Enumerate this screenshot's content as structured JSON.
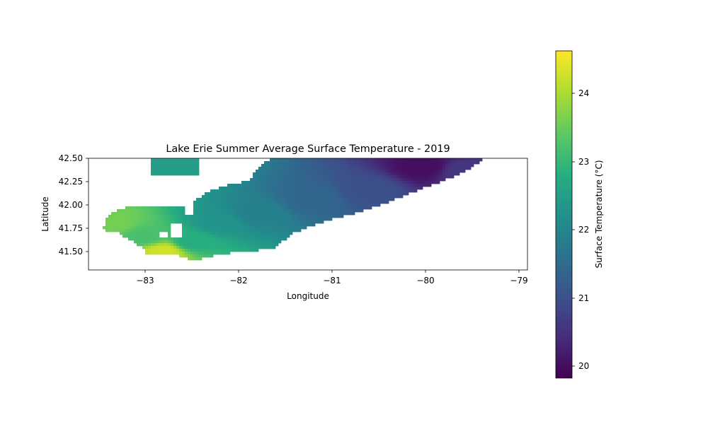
{
  "chart_data": {
    "type": "heatmap",
    "title": "Lake Erie Summer Average Surface Temperature - 2019",
    "xlabel": "Longitude",
    "ylabel": "Latitude",
    "xlim": [
      -83.6,
      -78.9
    ],
    "ylim": [
      41.3,
      42.5
    ],
    "xticks": [
      -83,
      -82,
      -81,
      -80,
      -79
    ],
    "xtick_labels": [
      "−83",
      "−82",
      "−81",
      "−80",
      "−79"
    ],
    "yticks": [
      41.5,
      41.75,
      42.0,
      42.25,
      42.5
    ],
    "ytick_labels": [
      "41.50",
      "41.75",
      "42.00",
      "42.25",
      "42.50"
    ],
    "colormap": "viridis",
    "colorbar": {
      "label": "Surface Temperature (°C)",
      "range": [
        19.83,
        24.63
      ],
      "ticks": [
        20,
        21,
        22,
        23,
        24
      ],
      "tick_labels": [
        "20",
        "21",
        "22",
        "23",
        "24"
      ]
    },
    "field_description_points": [
      {
        "lon": -83.35,
        "lat": 41.8,
        "temp": 23.6
      },
      {
        "lon": -83.0,
        "lat": 41.65,
        "temp": 23.2
      },
      {
        "lon": -82.8,
        "lat": 41.5,
        "temp": 24.3
      },
      {
        "lon": -82.5,
        "lat": 41.6,
        "temp": 22.8
      },
      {
        "lon": -82.2,
        "lat": 41.8,
        "temp": 22.3
      },
      {
        "lon": -81.8,
        "lat": 41.9,
        "temp": 21.9
      },
      {
        "lon": -81.2,
        "lat": 42.05,
        "temp": 21.4
      },
      {
        "lon": -80.6,
        "lat": 42.15,
        "temp": 21.0
      },
      {
        "lon": -80.0,
        "lat": 42.4,
        "temp": 20.0
      },
      {
        "lon": -82.75,
        "lat": 42.45,
        "temp": 22.5
      },
      {
        "lon": -79.6,
        "lat": 42.35,
        "temp": 20.6
      }
    ]
  }
}
